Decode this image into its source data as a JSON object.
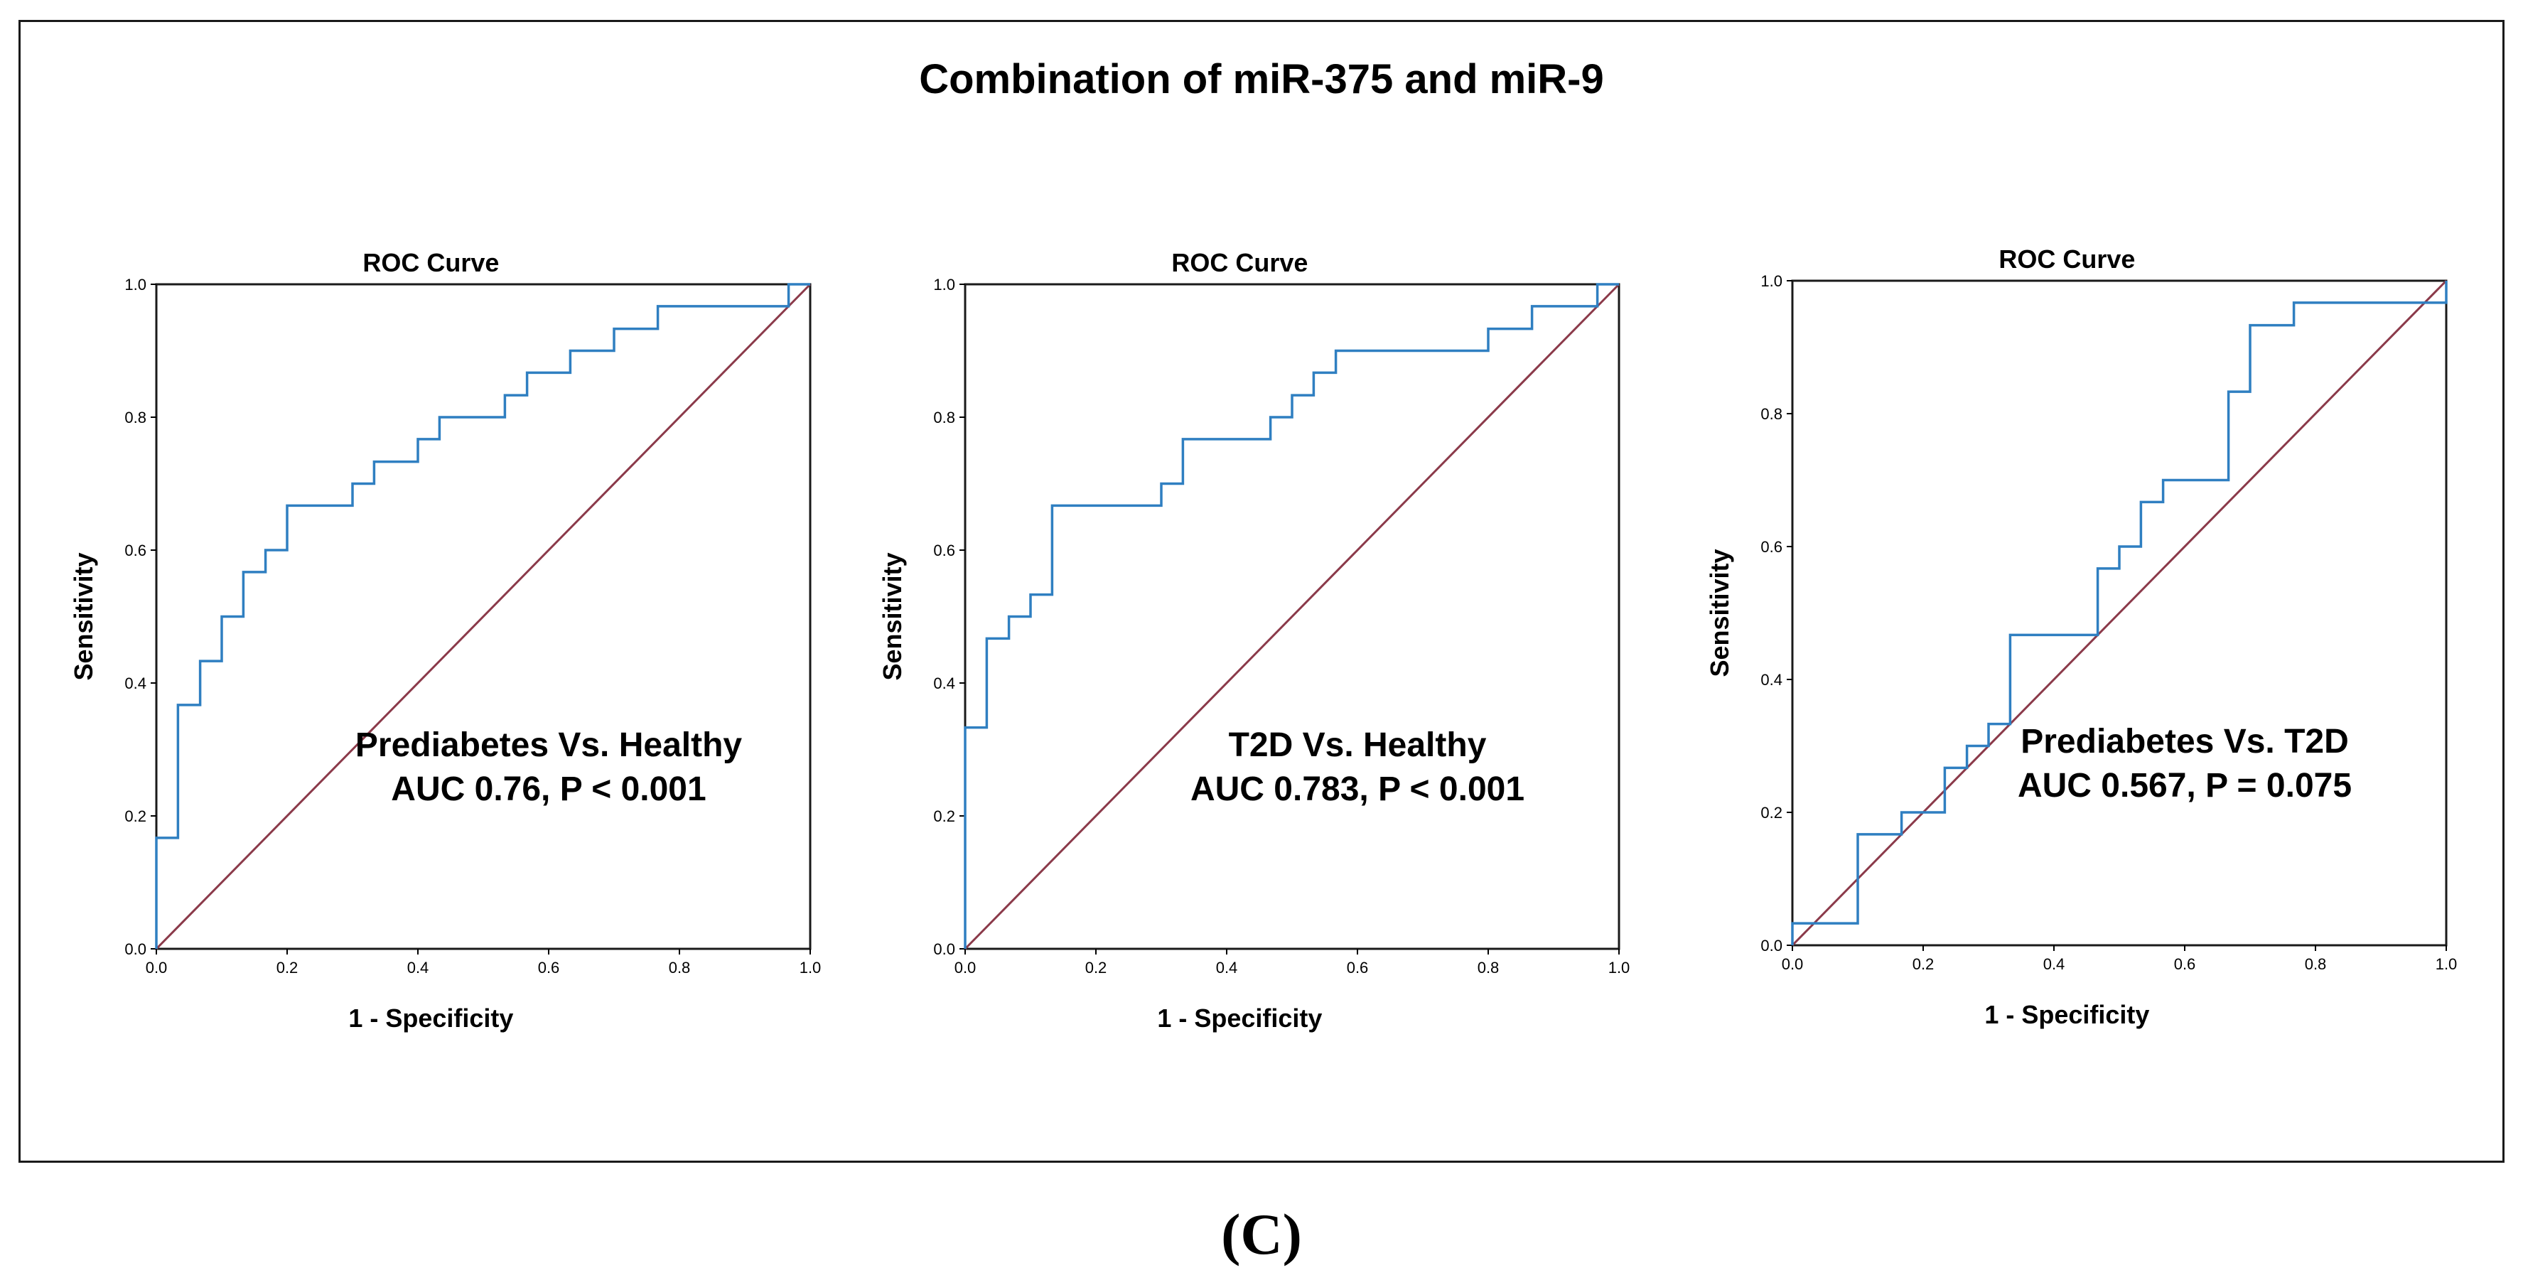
{
  "figure": {
    "title": "Combination of miR-375 and miR-9",
    "panel_label": "(C)"
  },
  "colors": {
    "roc_curve": "#2f7fc1",
    "reference_line": "#8b3a4a",
    "frame": "#1a1a1a"
  },
  "chart_data": [
    {
      "type": "line",
      "title": "ROC Curve",
      "xlabel": "1 - Specificity",
      "ylabel": "Sensitivity",
      "xlim": [
        0,
        1
      ],
      "ylim": [
        0,
        1
      ],
      "xticks": [
        "0.0",
        "0.2",
        "0.4",
        "0.6",
        "0.8",
        "1.0"
      ],
      "yticks": [
        "0.0",
        "0.2",
        "0.4",
        "0.6",
        "0.8",
        "1.0"
      ],
      "grid": false,
      "annotation": [
        "Prediabetes Vs. Healthy",
        "AUC 0.76, P < 0.001"
      ],
      "roc_points": [
        [
          0,
          0
        ],
        [
          0,
          0.167
        ],
        [
          0.033,
          0.167
        ],
        [
          0.033,
          0.367
        ],
        [
          0.067,
          0.367
        ],
        [
          0.067,
          0.433
        ],
        [
          0.1,
          0.433
        ],
        [
          0.1,
          0.5
        ],
        [
          0.133,
          0.5
        ],
        [
          0.133,
          0.567
        ],
        [
          0.167,
          0.567
        ],
        [
          0.167,
          0.6
        ],
        [
          0.2,
          0.6
        ],
        [
          0.2,
          0.667
        ],
        [
          0.3,
          0.667
        ],
        [
          0.3,
          0.7
        ],
        [
          0.333,
          0.7
        ],
        [
          0.333,
          0.733
        ],
        [
          0.4,
          0.733
        ],
        [
          0.4,
          0.767
        ],
        [
          0.433,
          0.767
        ],
        [
          0.433,
          0.8
        ],
        [
          0.533,
          0.8
        ],
        [
          0.533,
          0.833
        ],
        [
          0.567,
          0.833
        ],
        [
          0.567,
          0.867
        ],
        [
          0.633,
          0.867
        ],
        [
          0.633,
          0.9
        ],
        [
          0.7,
          0.9
        ],
        [
          0.7,
          0.933
        ],
        [
          0.767,
          0.933
        ],
        [
          0.767,
          0.967
        ],
        [
          0.967,
          0.967
        ],
        [
          0.967,
          1
        ],
        [
          1,
          1
        ]
      ],
      "reference_points": [
        [
          0,
          0
        ],
        [
          1,
          1
        ]
      ]
    },
    {
      "type": "line",
      "title": "ROC Curve",
      "xlabel": "1 - Specificity",
      "ylabel": "Sensitivity",
      "xlim": [
        0,
        1
      ],
      "ylim": [
        0,
        1
      ],
      "xticks": [
        "0.0",
        "0.2",
        "0.4",
        "0.6",
        "0.8",
        "1.0"
      ],
      "yticks": [
        "0.0",
        "0.2",
        "0.4",
        "0.6",
        "0.8",
        "1.0"
      ],
      "grid": false,
      "annotation": [
        "T2D Vs. Healthy",
        "AUC 0.783, P < 0.001"
      ],
      "roc_points": [
        [
          0,
          0
        ],
        [
          0,
          0.333
        ],
        [
          0.033,
          0.333
        ],
        [
          0.033,
          0.467
        ],
        [
          0.067,
          0.467
        ],
        [
          0.067,
          0.5
        ],
        [
          0.1,
          0.5
        ],
        [
          0.1,
          0.533
        ],
        [
          0.133,
          0.533
        ],
        [
          0.133,
          0.667
        ],
        [
          0.3,
          0.667
        ],
        [
          0.3,
          0.7
        ],
        [
          0.333,
          0.7
        ],
        [
          0.333,
          0.767
        ],
        [
          0.467,
          0.767
        ],
        [
          0.467,
          0.8
        ],
        [
          0.5,
          0.8
        ],
        [
          0.5,
          0.833
        ],
        [
          0.533,
          0.833
        ],
        [
          0.533,
          0.867
        ],
        [
          0.567,
          0.867
        ],
        [
          0.567,
          0.9
        ],
        [
          0.8,
          0.9
        ],
        [
          0.8,
          0.933
        ],
        [
          0.867,
          0.933
        ],
        [
          0.867,
          0.967
        ],
        [
          0.967,
          0.967
        ],
        [
          0.967,
          1
        ],
        [
          1,
          1
        ]
      ],
      "reference_points": [
        [
          0,
          0
        ],
        [
          1,
          1
        ]
      ]
    },
    {
      "type": "line",
      "title": "ROC Curve",
      "xlabel": "1 - Specificity",
      "ylabel": "Sensitivity",
      "xlim": [
        0,
        1
      ],
      "ylim": [
        0,
        1
      ],
      "xticks": [
        "0.0",
        "0.2",
        "0.4",
        "0.6",
        "0.8",
        "1.0"
      ],
      "yticks": [
        "0.0",
        "0.2",
        "0.4",
        "0.6",
        "0.8",
        "1.0"
      ],
      "grid": false,
      "annotation": [
        "Prediabetes Vs. T2D",
        "AUC 0.567, P = 0.075"
      ],
      "roc_points": [
        [
          0,
          0
        ],
        [
          0,
          0.033
        ],
        [
          0.1,
          0.033
        ],
        [
          0.1,
          0.167
        ],
        [
          0.167,
          0.167
        ],
        [
          0.167,
          0.2
        ],
        [
          0.233,
          0.2
        ],
        [
          0.233,
          0.267
        ],
        [
          0.267,
          0.267
        ],
        [
          0.267,
          0.3
        ],
        [
          0.3,
          0.3
        ],
        [
          0.3,
          0.333
        ],
        [
          0.333,
          0.333
        ],
        [
          0.333,
          0.467
        ],
        [
          0.467,
          0.467
        ],
        [
          0.467,
          0.567
        ],
        [
          0.5,
          0.567
        ],
        [
          0.5,
          0.6
        ],
        [
          0.533,
          0.6
        ],
        [
          0.533,
          0.667
        ],
        [
          0.567,
          0.667
        ],
        [
          0.567,
          0.7
        ],
        [
          0.667,
          0.7
        ],
        [
          0.667,
          0.833
        ],
        [
          0.7,
          0.833
        ],
        [
          0.7,
          0.933
        ],
        [
          0.767,
          0.933
        ],
        [
          0.767,
          0.967
        ],
        [
          1,
          0.967
        ],
        [
          1,
          1
        ]
      ],
      "reference_points": [
        [
          0,
          0
        ],
        [
          1,
          1
        ]
      ]
    }
  ]
}
